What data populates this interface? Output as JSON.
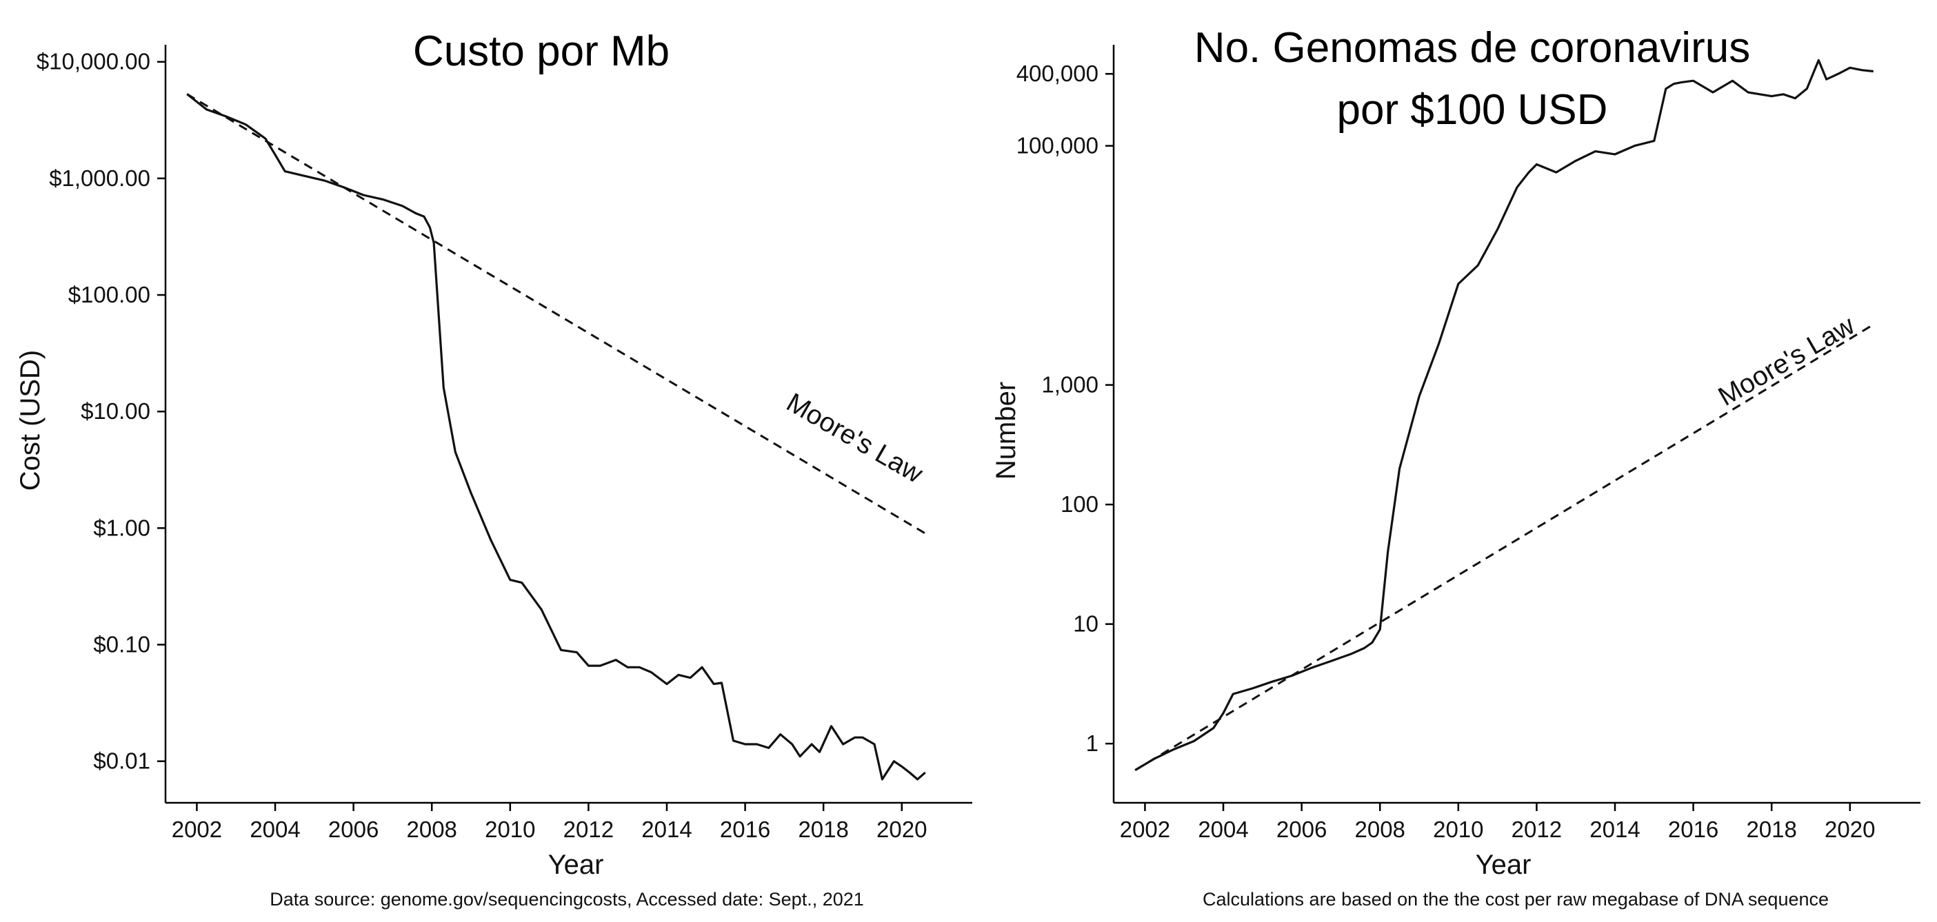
{
  "chart_data": [
    {
      "type": "line",
      "title": "Custo por Mb",
      "xlabel": "Year",
      "ylabel": "Cost (USD)",
      "caption": "Data source: genome.gov/sequencingcosts, Accessed date: Sept., 2021",
      "y_scale": "log",
      "xlim": [
        2001.2,
        2021.8
      ],
      "ylim": [
        0.0044,
        14000
      ],
      "x_ticks": [
        2002,
        2004,
        2006,
        2008,
        2010,
        2012,
        2014,
        2016,
        2018,
        2020
      ],
      "x_tick_labels": [
        "2002",
        "2004",
        "2006",
        "2008",
        "2010",
        "2012",
        "2014",
        "2016",
        "2018",
        "2020"
      ],
      "y_ticks": [
        10000,
        1000,
        100,
        10,
        1,
        0.1,
        0.01
      ],
      "y_tick_labels": [
        "$10,000.00",
        "$1,000.00",
        "$100.00",
        "$10.00",
        "$1.00",
        "$0.10",
        "$0.01"
      ],
      "annotation": "Moore's Law",
      "grid": false,
      "series": [
        {
          "style": "solid",
          "x": [
            2001.75,
            2002.25,
            2002.75,
            2003.25,
            2003.75,
            2004.0,
            2004.25,
            2004.75,
            2005.25,
            2005.75,
            2006.25,
            2006.75,
            2007.25,
            2007.6,
            2007.8,
            2007.95,
            2008.05,
            2008.3,
            2008.6,
            2009.0,
            2009.5,
            2010.0,
            2010.3,
            2010.8,
            2011.3,
            2011.7,
            2012.0,
            2012.3,
            2012.7,
            2013.0,
            2013.3,
            2013.6,
            2014.0,
            2014.3,
            2014.6,
            2014.9,
            2015.2,
            2015.4,
            2015.7,
            2016.0,
            2016.3,
            2016.6,
            2016.9,
            2017.2,
            2017.4,
            2017.7,
            2017.9,
            2018.2,
            2018.5,
            2018.8,
            2019.0,
            2019.3,
            2019.5,
            2019.8,
            2020.0,
            2020.2,
            2020.4,
            2020.6
          ],
          "y": [
            5292,
            3900,
            3400,
            2900,
            2200,
            1600,
            1150,
            1050,
            960,
            840,
            720,
            660,
            580,
            500,
            470,
            380,
            280,
            16,
            4.5,
            2.0,
            0.8,
            0.36,
            0.34,
            0.2,
            0.09,
            0.086,
            0.066,
            0.066,
            0.074,
            0.064,
            0.064,
            0.058,
            0.046,
            0.055,
            0.052,
            0.064,
            0.046,
            0.047,
            0.015,
            0.014,
            0.014,
            0.013,
            0.017,
            0.014,
            0.011,
            0.014,
            0.012,
            0.02,
            0.014,
            0.016,
            0.016,
            0.014,
            0.007,
            0.01,
            0.009,
            0.008,
            0.007,
            0.008
          ]
        },
        {
          "style": "dashed",
          "x": [
            2001.75,
            2020.6
          ],
          "y": [
            5292,
            0.9
          ]
        }
      ]
    },
    {
      "type": "line",
      "title_lines": [
        "No. Genomas de coronavirus",
        "por $100 USD"
      ],
      "xlabel": "Year",
      "ylabel": "Number",
      "caption": "Calculations are based on the the cost per raw megabase of DNA sequence",
      "y_scale": "log",
      "xlim": [
        2001.2,
        2021.8
      ],
      "ylim": [
        0.32,
        700000
      ],
      "x_ticks": [
        2002,
        2004,
        2006,
        2008,
        2010,
        2012,
        2014,
        2016,
        2018,
        2020
      ],
      "x_tick_labels": [
        "2002",
        "2004",
        "2006",
        "2008",
        "2010",
        "2012",
        "2014",
        "2016",
        "2018",
        "2020"
      ],
      "y_ticks": [
        400000,
        100000,
        1000,
        100,
        10,
        1
      ],
      "y_tick_labels": [
        "400,000",
        "100,000",
        "1,000",
        "100",
        "10",
        "1"
      ],
      "annotation": "Moore's Law",
      "grid": false,
      "series": [
        {
          "style": "solid",
          "x": [
            2001.75,
            2002.25,
            2002.75,
            2003.25,
            2003.75,
            2004.0,
            2004.25,
            2004.75,
            2005.25,
            2005.75,
            2006.25,
            2006.75,
            2007.25,
            2007.6,
            2007.8,
            2008.0,
            2008.2,
            2008.5,
            2009.0,
            2009.5,
            2010.0,
            2010.5,
            2011.0,
            2011.5,
            2011.8,
            2012.0,
            2012.5,
            2013.0,
            2013.5,
            2014.0,
            2014.5,
            2015.0,
            2015.3,
            2015.5,
            2015.7,
            2016.0,
            2016.5,
            2017.0,
            2017.4,
            2017.7,
            2018.0,
            2018.3,
            2018.6,
            2018.9,
            2019.2,
            2019.4,
            2019.7,
            2020.0,
            2020.3,
            2020.6
          ],
          "y": [
            0.6,
            0.75,
            0.9,
            1.05,
            1.35,
            1.8,
            2.6,
            2.9,
            3.3,
            3.7,
            4.3,
            4.9,
            5.6,
            6.3,
            7.0,
            9.0,
            40,
            200,
            800,
            2200,
            7000,
            10000,
            20000,
            45000,
            60000,
            70000,
            60000,
            75000,
            90000,
            85000,
            100000,
            110000,
            300000,
            330000,
            340000,
            350000,
            280000,
            350000,
            280000,
            270000,
            260000,
            270000,
            250000,
            300000,
            520000,
            360000,
            400000,
            450000,
            430000,
            420000
          ]
        },
        {
          "style": "dashed",
          "x": [
            2001.75,
            2020.6
          ],
          "y": [
            0.6,
            3200
          ]
        }
      ]
    }
  ]
}
